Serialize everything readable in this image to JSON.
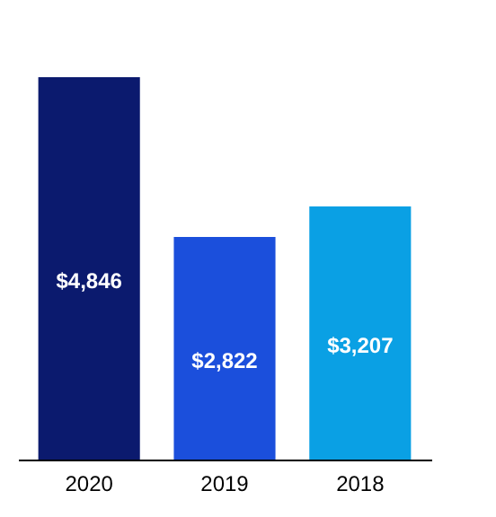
{
  "chart_data": {
    "type": "bar",
    "categories": [
      "2020",
      "2019",
      "2018"
    ],
    "values": [
      4846,
      2822,
      3207
    ],
    "colors": [
      "#0b1a6e",
      "#1b4fdc",
      "#0aa0e4"
    ],
    "value_labels": [
      "$4,846",
      "$2,822",
      "$3,207"
    ],
    "grid": false,
    "legend": false
  }
}
